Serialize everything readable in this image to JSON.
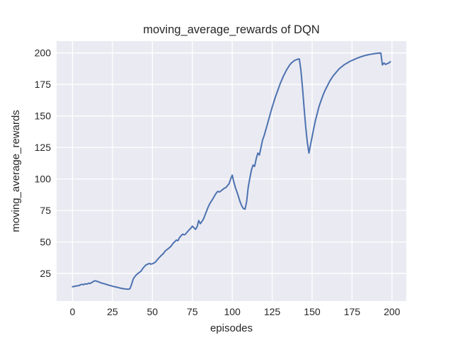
{
  "figure": {
    "title": "moving_average_rewards of DQN",
    "background_color": "#ffffff",
    "axes_background_color": "#eaeaf2",
    "grid_color": "#ffffff",
    "text_color": "#262626",
    "line_color": "#4c72b0"
  },
  "chart_data": {
    "type": "line",
    "title": "moving_average_rewards of DQN",
    "xlabel": "episodes",
    "ylabel": "moving_average_rewards",
    "x_ticks": [
      0,
      25,
      50,
      75,
      100,
      125,
      150,
      175,
      200
    ],
    "y_ticks": [
      25,
      50,
      75,
      100,
      125,
      150,
      175,
      200
    ],
    "xlim": [
      -9.95,
      208.95
    ],
    "ylim": [
      3.125,
      209.375
    ],
    "grid": true,
    "legend_position": "none",
    "series": [
      {
        "name": "moving_average_rewards",
        "color": "#4c72b0",
        "x_start": 0,
        "x_step": 1,
        "values": [
          14.5,
          14.7,
          15.0,
          15.2,
          15.4,
          16.0,
          16.4,
          16.1,
          16.8,
          16.5,
          17.3,
          17.0,
          17.8,
          18.6,
          19.2,
          18.9,
          18.5,
          18.0,
          17.5,
          17.1,
          16.8,
          16.4,
          16.0,
          15.6,
          15.3,
          14.9,
          14.6,
          14.3,
          14.0,
          13.7,
          13.4,
          13.1,
          12.9,
          12.7,
          12.6,
          12.5,
          13.0,
          16.5,
          20.5,
          22.5,
          24.0,
          25.0,
          26.0,
          27.0,
          29.0,
          30.5,
          31.8,
          32.3,
          33.0,
          32.4,
          32.7,
          33.3,
          34.2,
          35.8,
          37.2,
          38.6,
          39.8,
          41.0,
          42.8,
          43.8,
          44.8,
          45.8,
          47.2,
          49.0,
          50.2,
          51.5,
          51.0,
          53.5,
          55.0,
          56.2,
          55.6,
          56.6,
          58.2,
          59.6,
          60.8,
          62.5,
          61.3,
          60.0,
          62.0,
          67.0,
          64.5,
          66.2,
          68.2,
          71.5,
          74.8,
          78.0,
          80.5,
          82.5,
          84.5,
          86.8,
          88.8,
          90.2,
          89.6,
          90.6,
          91.6,
          92.6,
          93.2,
          94.6,
          96.2,
          100.0,
          103.0,
          97.5,
          93.0,
          89.5,
          85.5,
          81.5,
          78.5,
          76.5,
          76.0,
          82.0,
          93.5,
          100.5,
          107.0,
          111.0,
          110.0,
          116.0,
          120.5,
          119.0,
          125.0,
          131.0,
          134.5,
          139.0,
          143.5,
          148.0,
          152.5,
          157.0,
          161.0,
          165.0,
          168.5,
          172.0,
          175.5,
          178.5,
          181.5,
          184.0,
          186.5,
          188.5,
          190.5,
          192.0,
          193.0,
          194.0,
          194.5,
          195.0,
          195.2,
          186.0,
          172.0,
          156.0,
          141.0,
          129.0,
          120.5,
          127.0,
          133.5,
          140.0,
          146.0,
          151.0,
          156.0,
          160.0,
          163.5,
          167.0,
          170.0,
          172.5,
          175.0,
          177.5,
          179.5,
          181.5,
          183.0,
          184.5,
          186.0,
          187.5,
          188.5,
          189.5,
          190.5,
          191.3,
          192.0,
          192.8,
          193.5,
          194.0,
          194.6,
          195.2,
          195.7,
          196.2,
          196.7,
          197.1,
          197.5,
          197.9,
          198.2,
          198.5,
          198.8,
          199.0,
          199.2,
          199.4,
          199.6,
          199.7,
          199.8,
          199.9,
          190.5,
          192.0,
          190.8,
          191.5,
          192.0,
          193.0
        ]
      }
    ]
  }
}
